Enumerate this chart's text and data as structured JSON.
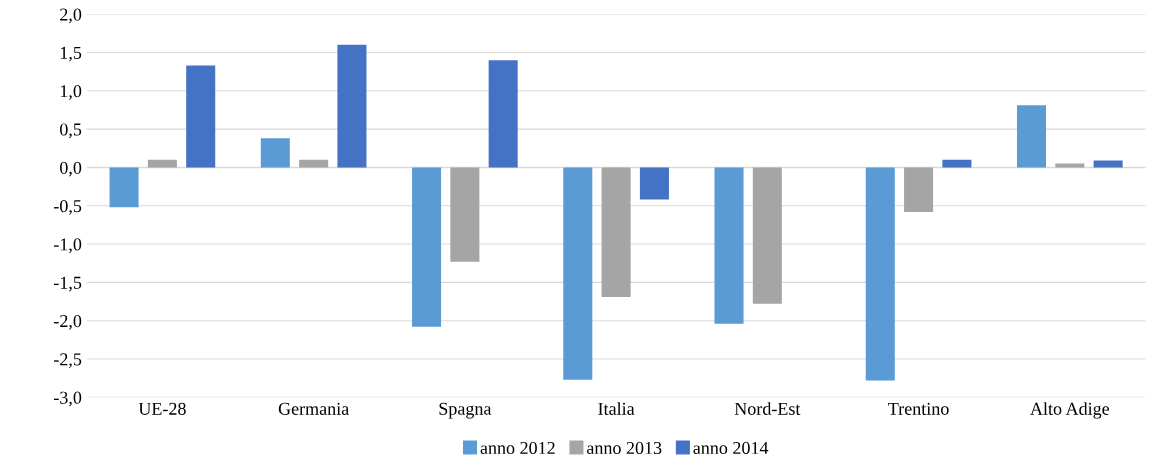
{
  "chart_data": {
    "type": "bar",
    "categories": [
      "UE-28",
      "Germania",
      "Spagna",
      "Italia",
      "Nord-Est",
      "Trentino",
      "Alto Adige"
    ],
    "series": [
      {
        "name": "anno 2012",
        "color": "#5b9bd5",
        "values": [
          -0.52,
          0.38,
          -2.08,
          -2.77,
          -2.04,
          -2.78,
          0.81
        ]
      },
      {
        "name": "anno 2013",
        "color": "#a5a5a5",
        "values": [
          0.1,
          0.1,
          -1.23,
          -1.69,
          -1.78,
          -0.58,
          0.05
        ]
      },
      {
        "name": "anno 2014",
        "color": "#4472c4",
        "values": [
          1.33,
          1.6,
          1.4,
          -0.42,
          null,
          0.1,
          0.09
        ]
      }
    ],
    "ylim": [
      -3.0,
      2.0
    ],
    "yticks": [
      {
        "value": -3.0,
        "label": "-3,0"
      },
      {
        "value": -2.5,
        "label": "-2,5"
      },
      {
        "value": -2.0,
        "label": "-2,0"
      },
      {
        "value": -1.5,
        "label": "-1,5"
      },
      {
        "value": -1.0,
        "label": "-1,0"
      },
      {
        "value": -0.5,
        "label": "-0,5"
      },
      {
        "value": 0.0,
        "label": "0,0"
      },
      {
        "value": 0.5,
        "label": "0,5"
      },
      {
        "value": 1.0,
        "label": "1,0"
      },
      {
        "value": 1.5,
        "label": "1,5"
      },
      {
        "value": 2.0,
        "label": "2,0"
      }
    ],
    "grid": "y",
    "legend": "bottom"
  }
}
